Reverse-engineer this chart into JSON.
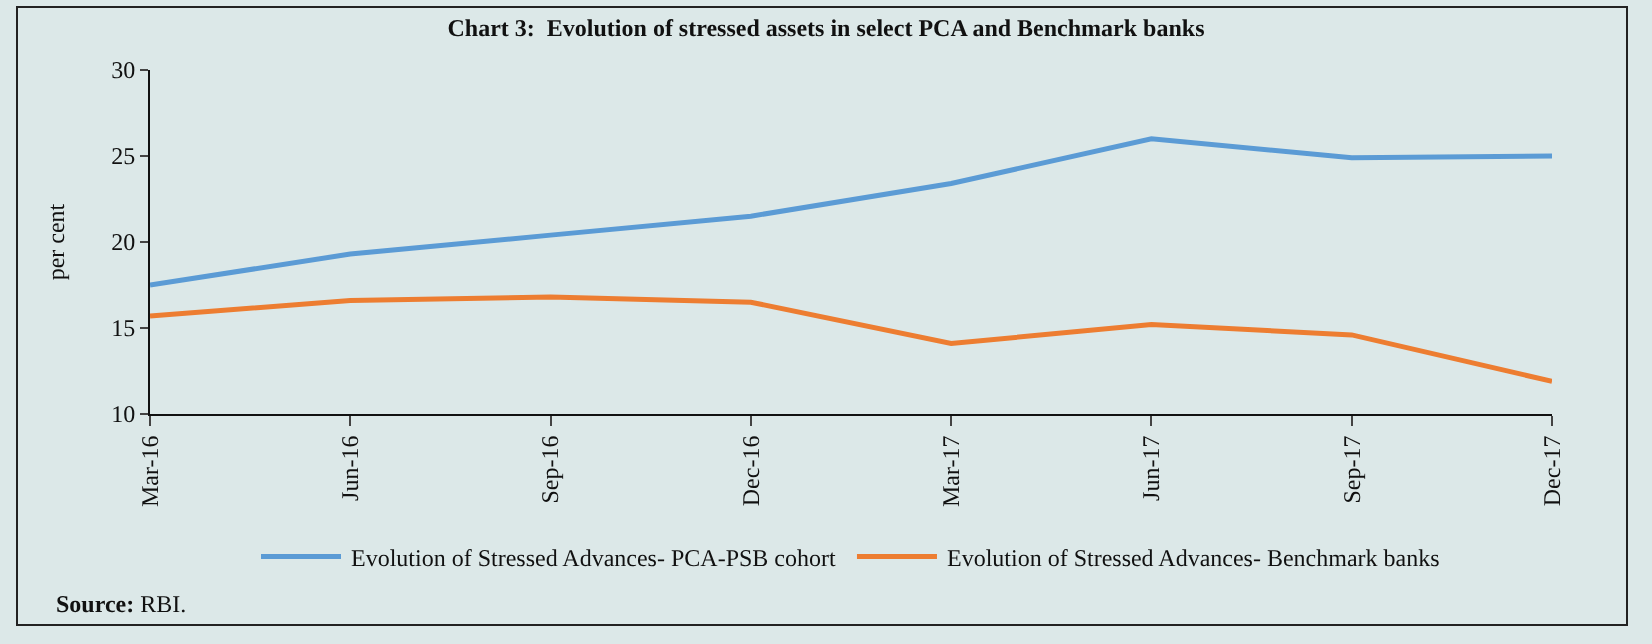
{
  "chart_data": {
    "type": "line",
    "title": "Chart 3:  Evolution of stressed assets in select PCA and Benchmark banks",
    "ylabel": "per cent",
    "categories": [
      "Mar-16",
      "Jun-16",
      "Sep-16",
      "Dec-16",
      "Mar-17",
      "Jun-17",
      "Sep-17",
      "Dec-17"
    ],
    "series": [
      {
        "name": "Evolution of Stressed Advances- PCA-PSB cohort",
        "color": "#5b9bd5",
        "values": [
          17.5,
          19.3,
          20.4,
          21.5,
          23.4,
          26.0,
          24.9,
          25.0
        ]
      },
      {
        "name": "Evolution of Stressed Advances- Benchmark banks",
        "color": "#ed7d31",
        "values": [
          15.7,
          16.6,
          16.8,
          16.5,
          14.1,
          15.2,
          14.6,
          11.9
        ]
      }
    ],
    "ylim": [
      10,
      30
    ],
    "yticks": [
      10,
      15,
      20,
      25,
      30
    ],
    "grid": false,
    "legend": "bottom",
    "marker": "none",
    "line_style": "solid",
    "annotations": [
      "Source: RBI."
    ]
  }
}
